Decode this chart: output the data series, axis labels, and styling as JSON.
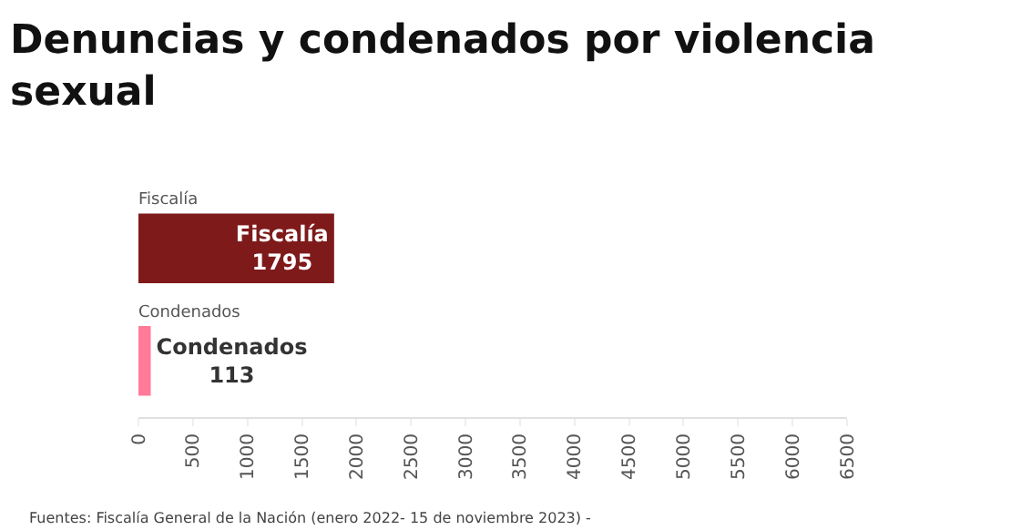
{
  "chart_data": {
    "type": "bar",
    "title": "Denuncias y condenados por violencia sexual",
    "orientation": "horizontal",
    "categories": [
      "Fiscalía",
      "Condenados"
    ],
    "values": [
      1795,
      113
    ],
    "colors": [
      "#7f1a1a",
      "#ff7b98"
    ],
    "data_labels": true,
    "xlim": [
      0,
      6500
    ],
    "xticks": [
      0,
      500,
      1000,
      1500,
      2000,
      2500,
      3000,
      3500,
      4000,
      4500,
      5000,
      5500,
      6000,
      6500
    ],
    "annotations": [
      "Fuentes: Fiscalía General de la Nación (enero 2022- 15 de noviembre 2023) -"
    ]
  }
}
